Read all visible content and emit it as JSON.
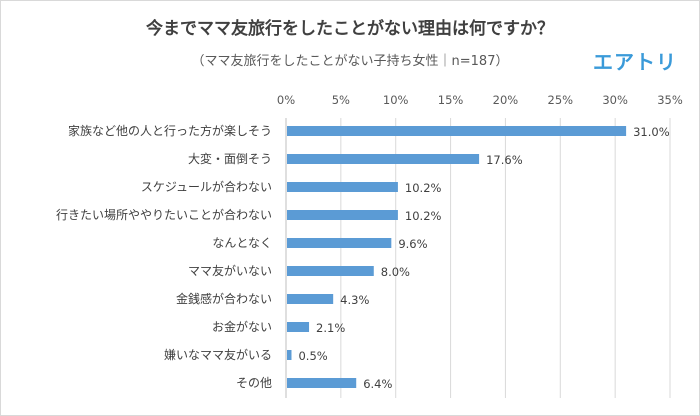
{
  "chart_data": {
    "type": "bar",
    "orientation": "horizontal",
    "title": "今までママ友旅行をしたことがない理由は何ですか？",
    "subtitle": "（ママ友旅行をしたことがない子持ち女性｜n=187）",
    "logo": "エアトリ",
    "xlabel": "",
    "ylabel": "",
    "xlim": [
      0,
      35
    ],
    "xticks": [
      0,
      5,
      10,
      15,
      20,
      25,
      30,
      35
    ],
    "xtick_labels": [
      "0%",
      "5%",
      "10%",
      "15%",
      "20%",
      "25%",
      "30%",
      "35%"
    ],
    "grid": true,
    "bar_color": "#5b9bd5",
    "categories": [
      "家族など他の人と行った方が楽しそう",
      "大変・面倒そう",
      "スケジュールが合わない",
      "行きたい場所ややりたいことが合わない",
      "なんとなく",
      "ママ友がいない",
      "金銭感が合わない",
      "お金がない",
      "嫌いなママ友がいる",
      "その他"
    ],
    "values": [
      31.0,
      17.6,
      10.2,
      10.2,
      9.6,
      8.0,
      4.3,
      2.1,
      0.5,
      6.4
    ],
    "value_labels": [
      "31.0%",
      "17.6%",
      "10.2%",
      "10.2%",
      "9.6%",
      "8.0%",
      "4.3%",
      "2.1%",
      "0.5%",
      "6.4%"
    ]
  }
}
